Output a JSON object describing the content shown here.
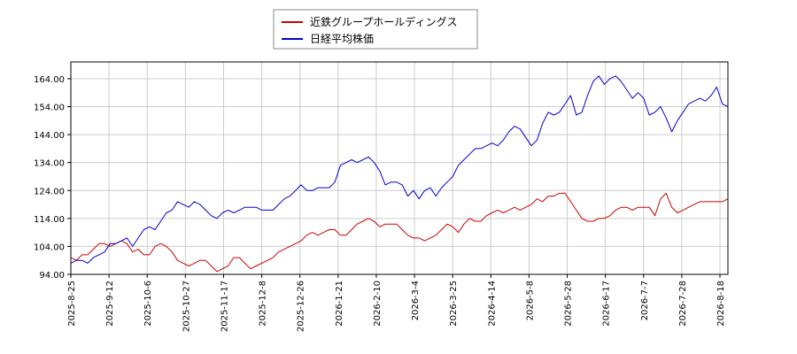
{
  "chart_data": {
    "type": "line",
    "legend": {
      "placement": "top-center",
      "entries": [
        {
          "label": "近鉄グループホールディングス",
          "color": "#cc0000"
        },
        {
          "label": "日経平均株価",
          "color": "#0000cc"
        }
      ]
    },
    "x_tick_labels": [
      "2025-8-25",
      "2025-9-12",
      "2025-10-6",
      "2025-10-27",
      "2025-11-17",
      "2025-12-8",
      "2025-12-26",
      "2026-1-21",
      "2026-2-10",
      "2026-3-4",
      "2026-3-25",
      "2026-4-14",
      "2026-5-8",
      "2026-5-28",
      "2026-6-17",
      "2026-7-7",
      "2026-7-28",
      "2026-8-18"
    ],
    "y_tick_labels": [
      "94.00",
      "104.00",
      "114.00",
      "124.00",
      "134.00",
      "144.00",
      "154.00",
      "164.00"
    ],
    "y_ticks": [
      94,
      104,
      114,
      124,
      134,
      144,
      154,
      164
    ],
    "ylim": [
      94,
      170
    ],
    "grid": true,
    "series": [
      {
        "name": "近鉄グループホールディングス",
        "color": "#cc0000",
        "values": [
          100,
          99,
          101,
          101,
          103,
          105,
          105,
          104,
          105,
          106,
          105,
          102,
          103,
          101,
          101,
          104,
          105,
          104,
          102,
          99,
          98,
          97,
          98,
          99,
          99,
          97,
          95,
          96,
          97,
          100,
          100,
          98,
          96,
          97,
          98,
          99,
          100,
          102,
          103,
          104,
          105,
          106,
          108,
          109,
          108,
          109,
          110,
          110,
          108,
          108,
          110,
          112,
          113,
          114,
          113,
          111,
          112,
          112,
          112,
          110,
          108,
          107,
          107,
          106,
          107,
          108,
          110,
          112,
          111,
          109,
          112,
          114,
          113,
          113,
          115,
          116,
          117,
          116,
          117,
          118,
          117,
          118,
          119,
          121,
          120,
          122,
          122,
          123,
          123,
          120,
          117,
          114,
          113,
          113,
          114,
          114,
          115,
          117,
          118,
          118,
          117,
          118,
          118,
          118,
          115,
          121,
          123,
          118,
          116,
          117,
          118,
          119,
          120,
          120,
          120,
          120,
          120,
          121
        ]
      },
      {
        "name": "日経平均株価",
        "color": "#0000cc",
        "values": [
          98,
          99,
          99,
          98,
          100,
          101,
          102,
          105,
          105,
          106,
          107,
          104,
          107,
          110,
          111,
          110,
          113,
          116,
          117,
          120,
          119,
          118,
          120,
          119,
          117,
          115,
          114,
          116,
          117,
          116,
          117,
          118,
          118,
          118,
          117,
          117,
          117,
          119,
          121,
          122,
          124,
          126,
          124,
          124,
          125,
          125,
          125,
          127,
          133,
          134,
          135,
          134,
          135,
          136,
          134,
          131,
          126,
          127,
          127,
          126,
          122,
          124,
          121,
          124,
          125,
          122,
          125,
          127,
          129,
          133,
          135,
          137,
          139,
          139,
          140,
          141,
          140,
          142,
          145,
          147,
          146,
          143,
          140,
          142,
          148,
          152,
          151,
          152,
          155,
          158,
          151,
          152,
          158,
          163,
          165,
          162,
          164,
          165,
          163,
          160,
          157,
          159,
          157,
          151,
          152,
          154,
          150,
          145,
          149,
          152,
          155,
          156,
          157,
          156,
          158,
          161,
          155,
          154
        ]
      }
    ]
  }
}
